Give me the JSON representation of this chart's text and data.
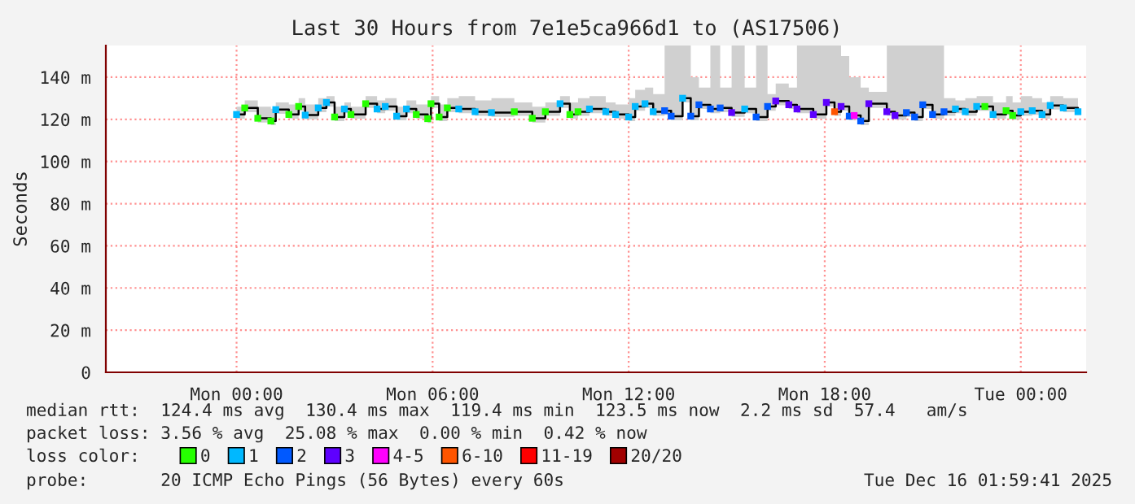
{
  "chart_data": {
    "type": "step",
    "title": "Last 30 Hours from 7e1e5ca966d1 to (AS17506)",
    "ylabel": "Seconds",
    "legend_title": "loss color:",
    "legend": "bottom",
    "grid": true,
    "xlim": [
      "2025-12-14T20:00",
      "2025-12-16T02:00"
    ],
    "xticks": [
      {
        "value": "2025-12-15T00:00",
        "label": "Mon 00:00"
      },
      {
        "value": "2025-12-15T06:00",
        "label": "Mon 06:00"
      },
      {
        "value": "2025-12-15T12:00",
        "label": "Mon 12:00"
      },
      {
        "value": "2025-12-15T18:00",
        "label": "Mon 18:00"
      },
      {
        "value": "2025-12-16T00:00",
        "label": "Tue 00:00"
      }
    ],
    "ylim": [
      0,
      155
    ],
    "yticks": [
      0,
      {
        "value": 20,
        "label": "20 m"
      },
      {
        "value": 40,
        "label": "40 m"
      },
      {
        "value": 60,
        "label": "60 m"
      },
      {
        "value": 80,
        "label": "80 m"
      },
      {
        "value": 100,
        "label": "100 m"
      },
      {
        "value": 120,
        "label": "120 m"
      },
      {
        "value": 140,
        "label": "140 m"
      }
    ],
    "annotations": [
      "median rtt:  124.4 ms avg  130.4 ms max  119.4 ms min  123.5 ms now  2.2 ms sd  57.4   am/s",
      "packet loss: 3.56 % avg  25.08 % max  0.00 % min  0.42 % now",
      "probe:       20 ICMP Echo Pings (56 Bytes) every 60s",
      "Tue Dec 16 01:59:41 2025"
    ],
    "series": [
      {
        "color": "#000000",
        "x": [
          "2025-12-15T00:00",
          "2025-12-15T00:15",
          "2025-12-15T00:39",
          "2025-12-15T01:03",
          "2025-12-15T01:12",
          "2025-12-15T01:36",
          "2025-12-15T01:54",
          "2025-12-15T02:06",
          "2025-12-15T02:30",
          "2025-12-15T02:45",
          "2025-12-15T03:00",
          "2025-12-15T03:18",
          "2025-12-15T03:30",
          "2025-12-15T03:57",
          "2025-12-15T04:18",
          "2025-12-15T04:33",
          "2025-12-15T04:54",
          "2025-12-15T05:12",
          "2025-12-15T05:30",
          "2025-12-15T05:51",
          "2025-12-15T05:57",
          "2025-12-15T06:12",
          "2025-12-15T06:27",
          "2025-12-15T06:48",
          "2025-12-15T07:18",
          "2025-12-15T07:48",
          "2025-12-15T08:30",
          "2025-12-15T09:03",
          "2025-12-15T09:27",
          "2025-12-15T09:54",
          "2025-12-15T10:12",
          "2025-12-15T10:27",
          "2025-12-15T10:48",
          "2025-12-15T11:18",
          "2025-12-15T11:36",
          "2025-12-15T12:00",
          "2025-12-15T12:12",
          "2025-12-15T12:30",
          "2025-12-15T12:45",
          "2025-12-15T13:06",
          "2025-12-15T13:18",
          "2025-12-15T13:39",
          "2025-12-15T13:54",
          "2025-12-15T14:09",
          "2025-12-15T14:30",
          "2025-12-15T14:48",
          "2025-12-15T15:09",
          "2025-12-15T15:33",
          "2025-12-15T15:54",
          "2025-12-15T16:15",
          "2025-12-15T16:30",
          "2025-12-15T16:54",
          "2025-12-15T17:09",
          "2025-12-15T17:39",
          "2025-12-15T18:03",
          "2025-12-15T18:18",
          "2025-12-15T18:30",
          "2025-12-15T18:45",
          "2025-12-15T18:54",
          "2025-12-15T19:06",
          "2025-12-15T19:21",
          "2025-12-15T19:54",
          "2025-12-15T20:09",
          "2025-12-15T20:30",
          "2025-12-15T20:45",
          "2025-12-15T21:00",
          "2025-12-15T21:18",
          "2025-12-15T21:39",
          "2025-12-15T22:00",
          "2025-12-15T22:18",
          "2025-12-15T22:39",
          "2025-12-15T22:54",
          "2025-12-15T23:09",
          "2025-12-15T23:33",
          "2025-12-15T23:45",
          "2025-12-16T00:00",
          "2025-12-16T00:21",
          "2025-12-16T00:39",
          "2025-12-16T00:54",
          "2025-12-16T01:18",
          "2025-12-16T01:45"
        ],
        "values": [
          122.3,
          125.4,
          120.5,
          119.2,
          124.6,
          122.3,
          126.1,
          122.0,
          125.4,
          128.0,
          121.1,
          124.9,
          122.3,
          127.4,
          124.9,
          126.1,
          121.5,
          124.9,
          122.3,
          120.3,
          127.4,
          121.1,
          125.4,
          124.9,
          123.6,
          123.2,
          123.6,
          120.5,
          123.6,
          127.4,
          122.3,
          123.6,
          124.9,
          123.6,
          122.3,
          121.1,
          126.1,
          127.4,
          123.6,
          124.1,
          121.5,
          130.0,
          121.5,
          126.9,
          124.9,
          125.4,
          123.2,
          124.9,
          121.1,
          126.1,
          128.7,
          126.9,
          124.9,
          122.3,
          128.0,
          123.6,
          126.1,
          121.5,
          121.8,
          119.2,
          127.4,
          123.6,
          121.8,
          123.2,
          121.1,
          126.9,
          122.3,
          123.6,
          124.9,
          123.6,
          126.1,
          126.1,
          122.3,
          124.1,
          121.8,
          123.6,
          124.1,
          122.3,
          126.6,
          125.4,
          123.6
        ],
        "lower": [
          120.3,
          123.4,
          118.5,
          117.2,
          122.6,
          120.3,
          124.1,
          120.0,
          123.4,
          126.0,
          119.1,
          122.9,
          120.3,
          125.4,
          122.9,
          124.1,
          119.5,
          122.9,
          120.3,
          118.3,
          125.4,
          119.1,
          123.4,
          122.9,
          121.6,
          121.2,
          121.6,
          118.5,
          121.6,
          125.4,
          120.3,
          121.6,
          122.9,
          121.6,
          120.3,
          119.1,
          124.1,
          125.4,
          121.6,
          122.1,
          119.5,
          128.0,
          119.5,
          124.9,
          122.9,
          123.4,
          121.2,
          122.9,
          119.1,
          124.1,
          126.7,
          124.9,
          122.9,
          120.3,
          126.0,
          121.6,
          124.1,
          119.5,
          119.8,
          117.2,
          125.4,
          121.6,
          119.8,
          121.2,
          119.1,
          124.9,
          120.3,
          121.6,
          122.9,
          121.6,
          124.1,
          124.1,
          120.3,
          122.1,
          119.8,
          121.6,
          122.1,
          120.3,
          124.6,
          123.4,
          121.6
        ],
        "upper": [
          126,
          129,
          126,
          125,
          128,
          127,
          130,
          127,
          130,
          131,
          126,
          128,
          126,
          131,
          129,
          130,
          126,
          129,
          127,
          126,
          131,
          127,
          130,
          131,
          129,
          130,
          128,
          126,
          128,
          131,
          128,
          130,
          131,
          128,
          127,
          130,
          134,
          135,
          132,
          155,
          155,
          155,
          140,
          135,
          155,
          135,
          155,
          135,
          155,
          132,
          137,
          135,
          155,
          155,
          155,
          155,
          150,
          140,
          140,
          135,
          133,
          155,
          155,
          155,
          155,
          155,
          155,
          130,
          129,
          130,
          131,
          131,
          128,
          131,
          128,
          131,
          130,
          128,
          131,
          130,
          128
        ]
      },
      {
        "type": "scatter",
        "name": "0",
        "color": "#26ff00",
        "marker": "square",
        "x": [
          "2025-12-15T00:15",
          "2025-12-15T00:39",
          "2025-12-15T01:03",
          "2025-12-15T01:36",
          "2025-12-15T01:54",
          "2025-12-15T03:00",
          "2025-12-15T03:30",
          "2025-12-15T03:57",
          "2025-12-15T05:30",
          "2025-12-15T05:51",
          "2025-12-15T05:57",
          "2025-12-15T06:12",
          "2025-12-15T06:27",
          "2025-12-15T08:30",
          "2025-12-15T09:03",
          "2025-12-15T09:27",
          "2025-12-15T10:12",
          "2025-12-15T10:27",
          "2025-12-15T22:54",
          "2025-12-15T23:33",
          "2025-12-15T23:45"
        ],
        "values": [
          125.4,
          120.5,
          119.2,
          122.3,
          126.1,
          121.1,
          122.3,
          127.4,
          122.3,
          120.3,
          127.4,
          121.1,
          125.4,
          123.6,
          120.5,
          123.6,
          122.3,
          123.6,
          126.1,
          124.1,
          121.8
        ]
      },
      {
        "type": "scatter",
        "name": "1",
        "color": "#00b8ff",
        "marker": "square",
        "x": [
          "2025-12-15T00:00",
          "2025-12-15T01:12",
          "2025-12-15T02:06",
          "2025-12-15T02:30",
          "2025-12-15T02:45",
          "2025-12-15T03:18",
          "2025-12-15T04:18",
          "2025-12-15T04:33",
          "2025-12-15T04:54",
          "2025-12-15T05:12",
          "2025-12-15T06:48",
          "2025-12-15T07:18",
          "2025-12-15T07:48",
          "2025-12-15T09:54",
          "2025-12-15T10:48",
          "2025-12-15T11:18",
          "2025-12-15T11:36",
          "2025-12-15T12:00",
          "2025-12-15T12:12",
          "2025-12-15T12:30",
          "2025-12-15T12:45",
          "2025-12-15T13:39",
          "2025-12-15T15:33",
          "2025-12-15T22:00",
          "2025-12-15T22:18",
          "2025-12-15T22:39",
          "2025-12-15T23:09",
          "2025-12-16T00:00",
          "2025-12-16T00:21",
          "2025-12-16T00:39",
          "2025-12-16T00:54",
          "2025-12-16T01:18",
          "2025-12-16T01:45"
        ],
        "values": [
          122.3,
          124.6,
          122.0,
          125.4,
          128.0,
          124.9,
          124.9,
          126.1,
          121.5,
          124.9,
          124.9,
          123.6,
          123.2,
          127.4,
          124.9,
          123.6,
          122.3,
          121.1,
          126.1,
          127.4,
          123.6,
          130.0,
          124.9,
          124.9,
          123.6,
          126.1,
          122.3,
          123.6,
          124.1,
          122.3,
          126.6,
          125.4,
          123.6
        ]
      },
      {
        "type": "scatter",
        "name": "2",
        "color": "#0059ff",
        "marker": "square",
        "x": [
          "2025-12-15T13:06",
          "2025-12-15T13:18",
          "2025-12-15T13:54",
          "2025-12-15T14:09",
          "2025-12-15T14:30",
          "2025-12-15T14:48",
          "2025-12-15T15:54",
          "2025-12-15T16:15",
          "2025-12-15T18:45",
          "2025-12-15T19:06",
          "2025-12-15T20:30",
          "2025-12-15T20:45",
          "2025-12-15T21:00",
          "2025-12-15T21:18",
          "2025-12-15T21:39"
        ],
        "values": [
          124.1,
          121.5,
          121.5,
          126.9,
          124.9,
          125.4,
          121.1,
          126.1,
          121.5,
          119.2,
          123.2,
          121.1,
          126.9,
          122.3,
          123.6
        ]
      },
      {
        "type": "scatter",
        "name": "3",
        "color": "#5e00ff",
        "marker": "square",
        "x": [
          "2025-12-15T15:09",
          "2025-12-15T16:30",
          "2025-12-15T16:54",
          "2025-12-15T17:09",
          "2025-12-15T17:39",
          "2025-12-15T18:03",
          "2025-12-15T18:30",
          "2025-12-15T19:21",
          "2025-12-15T19:54",
          "2025-12-15T20:09"
        ],
        "values": [
          123.2,
          128.7,
          126.9,
          124.9,
          122.3,
          128.0,
          126.1,
          127.4,
          123.6,
          121.8
        ]
      },
      {
        "type": "scatter",
        "name": "4-5",
        "color": "#ff00fe",
        "marker": "square",
        "x": [
          "2025-12-15T18:54"
        ],
        "values": [
          121.8
        ]
      },
      {
        "type": "scatter",
        "name": "6-10",
        "color": "#ff5500",
        "marker": "square",
        "x": [
          "2025-12-15T18:18"
        ],
        "values": [
          123.6
        ]
      },
      {
        "type": "scatter",
        "name": "11-19",
        "color": "#ff0000",
        "marker": "square"
      },
      {
        "type": "scatter",
        "name": "20/20",
        "color": "#a10000",
        "marker": "square"
      }
    ]
  }
}
